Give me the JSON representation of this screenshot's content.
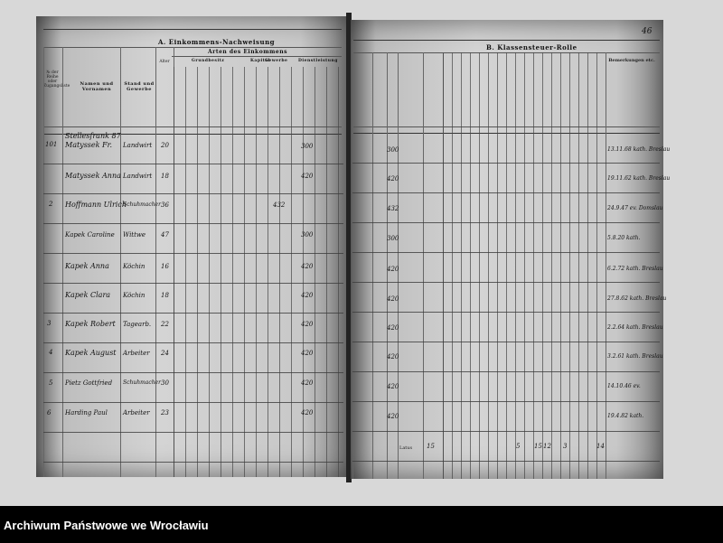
{
  "left_page": {
    "title": "A. Einkommens-Nachweisung",
    "subtitle": "Arten des Einkommens",
    "col_headers": {
      "number": "№ der Reihe oder Zugangsliste",
      "name": "Namen und Vornamen",
      "status": "Stand und Gewerbe",
      "age": "Alter",
      "grundbesitz": "Grundbesitz",
      "kapital": "Kapital",
      "gewerbe": "Gewerbe",
      "dienst": "Dienstleistung"
    },
    "rows": [
      {
        "no": "",
        "name": "Stellesfrank 87",
        "status": "",
        "age": "",
        "income": ""
      },
      {
        "no": "101",
        "name": "Matyssek Fr.",
        "status": "Landwirt",
        "age": "20",
        "income": "300"
      },
      {
        "no": "",
        "name": "Matyssek Anna",
        "status": "Landwirt",
        "age": "18",
        "income": "420"
      },
      {
        "no": "2",
        "name": "Hoffmann Ulrich",
        "status": "Schuhmacher",
        "age": "36",
        "income": "432"
      },
      {
        "no": "",
        "name": "Kapek Caroline",
        "status": "Wittwe",
        "age": "47",
        "income": "300"
      },
      {
        "no": "",
        "name": "Kapek Anna",
        "status": "Köchin",
        "age": "16",
        "income": "420"
      },
      {
        "no": "",
        "name": "Kapek Clara",
        "status": "Köchin",
        "age": "18",
        "income": "420"
      },
      {
        "no": "3",
        "name": "Kapek Robert",
        "status": "Tagearb.",
        "age": "22",
        "income": "420"
      },
      {
        "no": "4",
        "name": "Kapek August",
        "status": "Arbeiter",
        "age": "24",
        "income": "420"
      },
      {
        "no": "5",
        "name": "Pietz Gottfried",
        "status": "Schuhmacher",
        "age": "30",
        "income": "420"
      },
      {
        "no": "6",
        "name": "Harding Paul",
        "status": "Arbeiter",
        "age": "23",
        "income": "420"
      }
    ]
  },
  "right_page": {
    "title": "B. Klassensteuer-Rolle",
    "page_number": "46",
    "remarks_header": "Bemerkungen etc.",
    "income_col": [
      "300",
      "420",
      "432",
      "300",
      "420",
      "420",
      "420",
      "420",
      "420",
      "420"
    ],
    "remarks": [
      "13.11.68 kath. Breslau",
      "19.11.62 kath. Breslau",
      "24.9.47 ev. Domslau",
      "5.8.20 kath.",
      "6.2.72 kath. Breslau",
      "27.8.62 kath. Breslau",
      "2.2.64 kath. Breslau",
      "3.2.61 kath. Breslau",
      "14.10.46 ev.",
      "19.4.82 kath."
    ],
    "sum_label": "Latus",
    "sums": [
      "15",
      "5",
      "15",
      "12",
      "3",
      "14"
    ]
  },
  "footer": {
    "archive_name": "Archiwum Państwowe we Wrocławiu"
  }
}
